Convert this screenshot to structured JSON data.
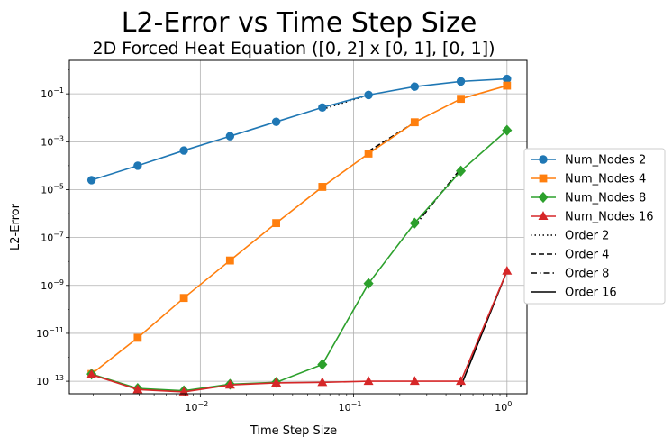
{
  "chart_data": {
    "type": "line",
    "title": "L2-Error vs Time Step Size",
    "subtitle": "2D Forced Heat Equation ([0, 2] x [0, 1], [0, 1])",
    "xlabel": "Time Step Size",
    "ylabel": "L2-Error",
    "xscale": "log",
    "yscale": "log",
    "xlim": [
      0.0014,
      1.35
    ],
    "ylim": [
      3e-14,
      2.5
    ],
    "grid": true,
    "legend_position": "outside-right",
    "x_ticks": [
      {
        "value": 0.01,
        "base": "10",
        "exp": "−2"
      },
      {
        "value": 0.1,
        "base": "10",
        "exp": "−1"
      },
      {
        "value": 1,
        "base": "10",
        "exp": "0"
      }
    ],
    "y_ticks": [
      {
        "value": 1e-13,
        "base": "10",
        "exp": "−13"
      },
      {
        "value": 1e-11,
        "base": "10",
        "exp": "−11"
      },
      {
        "value": 1e-09,
        "base": "10",
        "exp": "−9"
      },
      {
        "value": 1e-07,
        "base": "10",
        "exp": "−7"
      },
      {
        "value": 1e-05,
        "base": "10",
        "exp": "−5"
      },
      {
        "value": 0.001,
        "base": "10",
        "exp": "−3"
      },
      {
        "value": 0.1,
        "base": "10",
        "exp": "−1"
      }
    ],
    "x": [
      0.001953125,
      0.00390625,
      0.0078125,
      0.015625,
      0.03125,
      0.0625,
      0.125,
      0.25,
      0.5,
      1.0
    ],
    "series": [
      {
        "name": "Num_Nodes 2",
        "color": "#1f77b4",
        "marker": "circle",
        "values": [
          2.5e-05,
          0.0001,
          0.00043,
          0.0017,
          0.0068,
          0.027,
          0.09,
          0.2,
          0.33,
          0.42
        ]
      },
      {
        "name": "Num_Nodes 4",
        "color": "#ff7f0e",
        "marker": "square",
        "values": [
          2e-13,
          6.5e-12,
          3e-10,
          1.1e-08,
          4e-07,
          1.3e-05,
          0.00032,
          0.0065,
          0.062,
          0.22
        ]
      },
      {
        "name": "Num_Nodes 8",
        "color": "#2ca02c",
        "marker": "diamond",
        "values": [
          2e-13,
          5e-14,
          4e-14,
          7.5e-14,
          9e-14,
          5e-13,
          1.2e-09,
          4e-07,
          6e-05,
          0.003
        ]
      },
      {
        "name": "Num_Nodes 16",
        "color": "#d62728",
        "marker": "triangle",
        "values": [
          1.9e-13,
          4.5e-14,
          3.6e-14,
          7e-14,
          8.5e-14,
          9e-14,
          1e-13,
          1e-13,
          1e-13,
          4e-09
        ]
      }
    ],
    "reference_lines": [
      {
        "name": "Order 2",
        "dash": "1.5 3",
        "x": [
          0.0625,
          0.125
        ],
        "values": [
          0.0225,
          0.09
        ]
      },
      {
        "name": "Order 4",
        "dash": "6 3",
        "x": [
          0.125,
          0.25
        ],
        "values": [
          0.0004,
          0.0064
        ]
      },
      {
        "name": "Order 8",
        "dash": "7 3 1.5 3",
        "x": [
          0.25,
          0.5
        ],
        "values": [
          3e-07,
          7.68e-05
        ]
      },
      {
        "name": "Order 16",
        "dash": "",
        "x": [
          0.5,
          1.0
        ],
        "values": [
          6.1e-14,
          4e-09
        ]
      }
    ]
  }
}
